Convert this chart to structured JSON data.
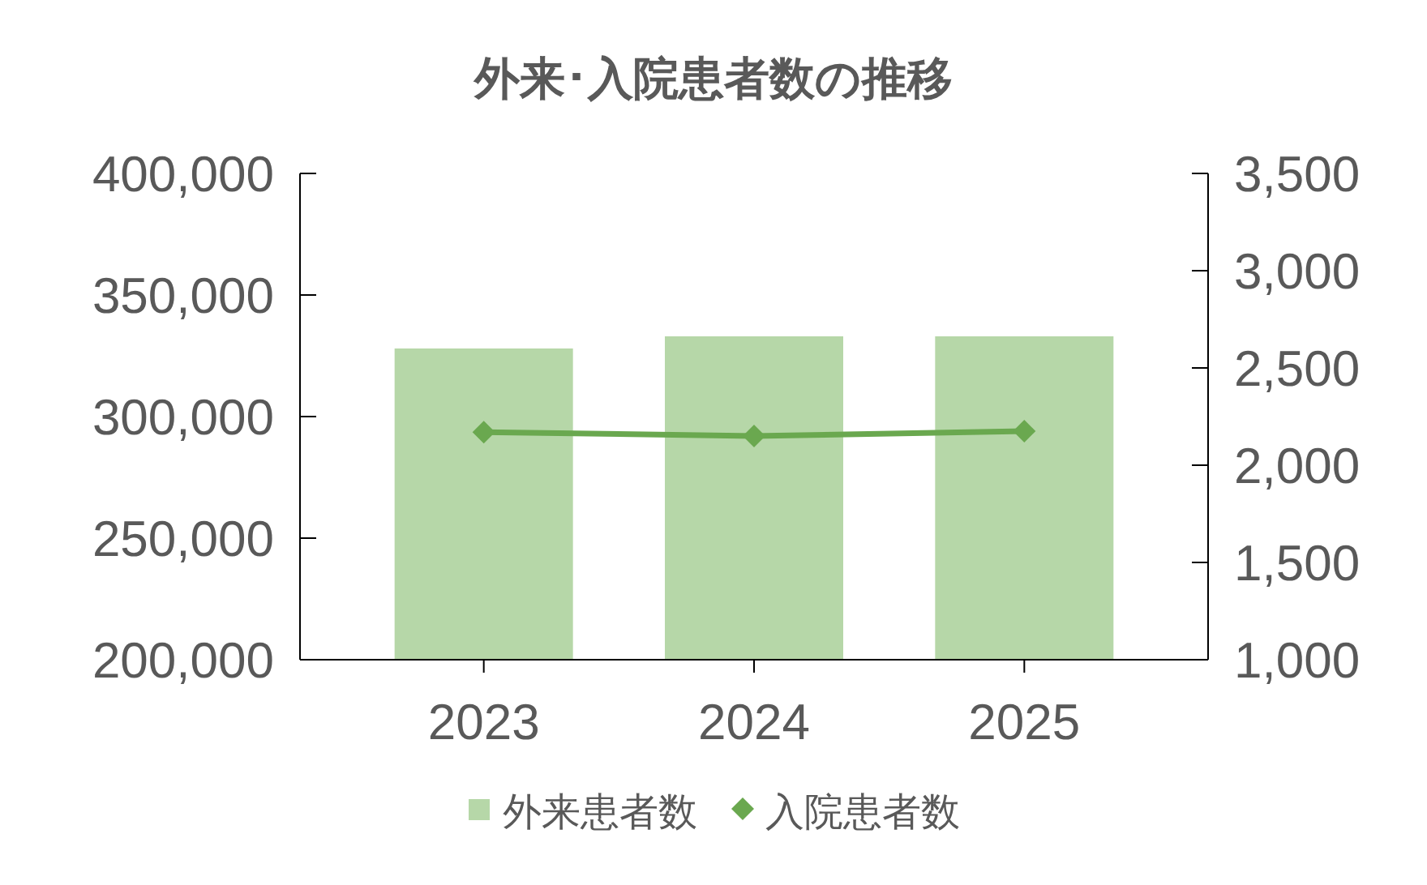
{
  "chart_data": {
    "type": "bar",
    "title": "外来･入院患者数の推移",
    "categories": [
      "2023",
      "2024",
      "2025"
    ],
    "series": [
      {
        "name": "外来患者数",
        "color": "#b6d7a8",
        "values": [
          328000,
          333000,
          333000
        ]
      },
      {
        "name": "入院患者数",
        "type": "line",
        "axis": "y2",
        "marker": "diamond",
        "color": "#6aa84f",
        "values": [
          2170,
          2150,
          2175
        ]
      }
    ],
    "ylim": [
      200000,
      400000
    ],
    "yticks": [
      {
        "value": 200000,
        "label": "200,000"
      },
      {
        "value": 250000,
        "label": "250,000"
      },
      {
        "value": 300000,
        "label": "300,000"
      },
      {
        "value": 350000,
        "label": "350,000"
      },
      {
        "value": 400000,
        "label": "400,000"
      }
    ],
    "y2lim": [
      1000,
      3500
    ],
    "y2ticks": [
      {
        "value": 1000,
        "label": "1,000"
      },
      {
        "value": 1500,
        "label": "1,500"
      },
      {
        "value": 2000,
        "label": "2,000"
      },
      {
        "value": 2500,
        "label": "2,500"
      },
      {
        "value": 3000,
        "label": "3,000"
      },
      {
        "value": 3500,
        "label": "3,500"
      }
    ],
    "grid": false,
    "legend": "bottom"
  }
}
